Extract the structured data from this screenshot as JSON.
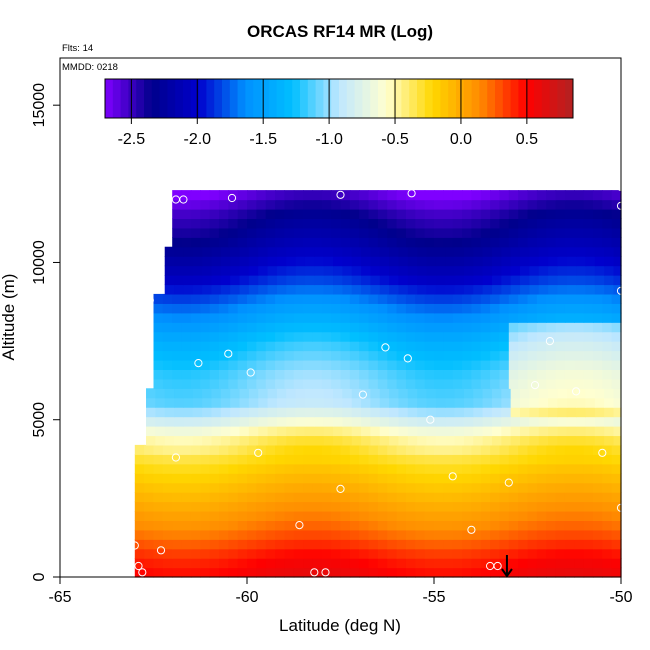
{
  "chart_data": {
    "type": "heatmap",
    "title": "ORCAS RF14 MR (Log)",
    "xlabel": "Latitude (deg N)",
    "ylabel": "Altitude (m)",
    "xlim": [
      -65,
      -50
    ],
    "ylim": [
      0,
      16500
    ],
    "x_ticks": [
      -65,
      -60,
      -55,
      -50
    ],
    "x_tick_labels": [
      "-65",
      "-60",
      "-55",
      "-50"
    ],
    "y_ticks": [
      0,
      5000,
      10000,
      15000
    ],
    "y_tick_labels": [
      "0",
      "5000",
      "10000",
      "15000"
    ],
    "annotations": {
      "flights": "Flts: 14",
      "date": "MMDD: 0218"
    },
    "colorbar": {
      "range": [
        -2.7,
        0.85
      ],
      "ticks": [
        -2.5,
        -2.0,
        -1.5,
        -1.0,
        -0.5,
        0.0,
        0.5
      ],
      "tick_labels": [
        "-2.5",
        "-2.0",
        "-1.5",
        "-1.0",
        "-0.5",
        "0.0",
        "0.5"
      ],
      "colors": [
        "#7f00ff",
        "#00008b",
        "#0000cd",
        "#0090ff",
        "#00bfff",
        "#bfe7ff",
        "#ffffd0",
        "#ffd700",
        "#ff8c00",
        "#ff0000",
        "#b22222"
      ]
    },
    "field_profile": {
      "altitude_m": [
        0,
        600,
        1500,
        2500,
        3500,
        4500,
        5000,
        5500,
        6500,
        7500,
        8500,
        9500,
        10500,
        11500,
        12300
      ],
      "log_mr": [
        0.55,
        0.45,
        0.2,
        0.0,
        -0.2,
        -0.45,
        -0.75,
        -1.0,
        -1.1,
        -1.3,
        -1.6,
        -1.95,
        -2.2,
        -2.4,
        -2.65
      ]
    },
    "data_extent": [
      {
        "lat_min": -63.0,
        "lat_max": -50.0,
        "alt_min": 0,
        "alt_max": 4200
      },
      {
        "lat_min": -62.7,
        "lat_max": -50.0,
        "alt_min": 4200,
        "alt_max": 6000
      },
      {
        "lat_min": -62.5,
        "lat_max": -50.0,
        "alt_min": 6000,
        "alt_max": 9000
      },
      {
        "lat_min": -62.2,
        "lat_max": -50.0,
        "alt_min": 9000,
        "alt_max": 10500
      },
      {
        "lat_min": -62.0,
        "lat_max": -50.0,
        "alt_min": 10500,
        "alt_max": 12300
      }
    ],
    "sample_points": [
      {
        "lat": -61.9,
        "alt": 12000
      },
      {
        "lat": -61.7,
        "alt": 12000
      },
      {
        "lat": -60.4,
        "alt": 12050
      },
      {
        "lat": -57.5,
        "alt": 12150
      },
      {
        "lat": -55.6,
        "alt": 12200
      },
      {
        "lat": -50.0,
        "alt": 12400
      },
      {
        "lat": -50.0,
        "alt": 11800
      },
      {
        "lat": -62.6,
        "alt": 8800
      },
      {
        "lat": -50.0,
        "alt": 9100
      },
      {
        "lat": -60.5,
        "alt": 7100
      },
      {
        "lat": -61.3,
        "alt": 6800
      },
      {
        "lat": -59.9,
        "alt": 6500
      },
      {
        "lat": -56.3,
        "alt": 7300
      },
      {
        "lat": -55.7,
        "alt": 6950
      },
      {
        "lat": -51.9,
        "alt": 7500
      },
      {
        "lat": -52.3,
        "alt": 6100
      },
      {
        "lat": -51.2,
        "alt": 5900
      },
      {
        "lat": -56.9,
        "alt": 5800
      },
      {
        "lat": -55.1,
        "alt": 5000
      },
      {
        "lat": -59.7,
        "alt": 3950
      },
      {
        "lat": -61.9,
        "alt": 3800
      },
      {
        "lat": -50.5,
        "alt": 3950
      },
      {
        "lat": -54.5,
        "alt": 3200
      },
      {
        "lat": -57.5,
        "alt": 2800
      },
      {
        "lat": -53.0,
        "alt": 3000
      },
      {
        "lat": -58.6,
        "alt": 1650
      },
      {
        "lat": -54.0,
        "alt": 1500
      },
      {
        "lat": -50.0,
        "alt": 2200
      },
      {
        "lat": -63.0,
        "alt": 1000
      },
      {
        "lat": -62.3,
        "alt": 850
      },
      {
        "lat": -62.9,
        "alt": 350
      },
      {
        "lat": -62.8,
        "alt": 150
      },
      {
        "lat": -58.2,
        "alt": 150
      },
      {
        "lat": -57.9,
        "alt": 150
      },
      {
        "lat": -53.5,
        "alt": 350
      },
      {
        "lat": -53.3,
        "alt": 350
      }
    ],
    "marker": {
      "lat": -53.05,
      "alt_top": 700,
      "alt_bottom": 0
    }
  }
}
